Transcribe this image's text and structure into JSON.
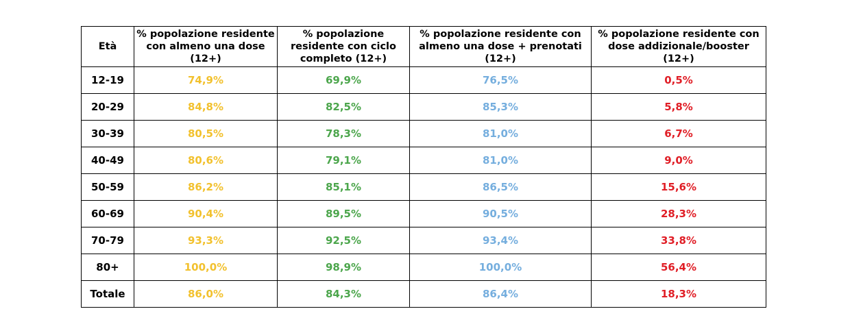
{
  "colors": {
    "col1": "#f2c12e",
    "col2": "#4ca64c",
    "col3": "#75aede",
    "col4": "#e01e26"
  },
  "table": {
    "headers": [
      "Età",
      "% popolazione residente con almeno una dose (12+)",
      "% popolazione residente con ciclo completo (12+)",
      "% popolazione residente con almeno una dose + prenotati (12+)",
      "% popolazione residente con dose addizionale/booster (12+)"
    ],
    "rows": [
      [
        "12-19",
        "74,9%",
        "69,9%",
        "76,5%",
        "0,5%"
      ],
      [
        "20-29",
        "84,8%",
        "82,5%",
        "85,3%",
        "5,8%"
      ],
      [
        "30-39",
        "80,5%",
        "78,3%",
        "81,0%",
        "6,7%"
      ],
      [
        "40-49",
        "80,6%",
        "79,1%",
        "81,0%",
        "9,0%"
      ],
      [
        "50-59",
        "86,2%",
        "85,1%",
        "86,5%",
        "15,6%"
      ],
      [
        "60-69",
        "90,4%",
        "89,5%",
        "90,5%",
        "28,3%"
      ],
      [
        "70-79",
        "93,3%",
        "92,5%",
        "93,4%",
        "33,8%"
      ],
      [
        "80+",
        "100,0%",
        "98,9%",
        "100,0%",
        "56,4%"
      ],
      [
        "Totale",
        "86,0%",
        "84,3%",
        "86,4%",
        "18,3%"
      ]
    ]
  }
}
